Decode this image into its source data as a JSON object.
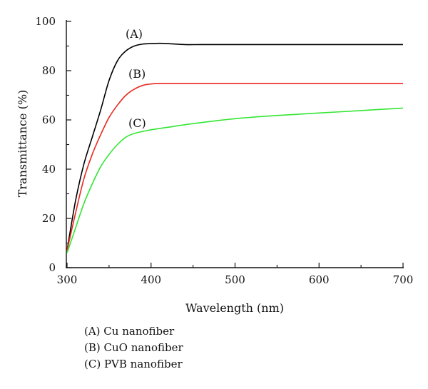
{
  "chart_data": {
    "type": "line",
    "title": "",
    "xlabel": "Wavelength (nm)",
    "ylabel": "Transmittance (%)",
    "xlim": [
      300,
      700
    ],
    "ylim": [
      0,
      100
    ],
    "xticks": [
      300,
      400,
      500,
      600,
      700
    ],
    "yticks": [
      0,
      20,
      40,
      60,
      80,
      100
    ],
    "grid": false,
    "legend_placement": "below chart",
    "series": [
      {
        "name": "(A) Cu nanofiber",
        "label": "(A)",
        "color": "#000000",
        "x": [
          300,
          310,
          320,
          330,
          340,
          350,
          360,
          370,
          380,
          390,
          400,
          410,
          420,
          440,
          460,
          500,
          550,
          600,
          650,
          700
        ],
        "y": [
          7,
          27,
          42,
          53,
          64,
          76,
          84,
          88,
          90,
          90.8,
          91,
          91.1,
          91,
          90.6,
          90.6,
          90.6,
          90.6,
          90.6,
          90.6,
          90.6
        ]
      },
      {
        "name": "(B) CuO nanofiber",
        "label": "(B)",
        "color": "#e8281e",
        "x": [
          300,
          310,
          320,
          330,
          340,
          350,
          360,
          370,
          380,
          390,
          400,
          410,
          420,
          450,
          500,
          550,
          600,
          650,
          700
        ],
        "y": [
          7,
          22,
          36,
          46,
          54,
          61,
          66,
          70,
          72.5,
          74,
          74.6,
          74.8,
          74.8,
          74.8,
          74.8,
          74.8,
          74.8,
          74.8,
          74.8
        ]
      },
      {
        "name": "(C) PVB nanofiber",
        "label": "(C)",
        "color": "#33e633",
        "x": [
          300,
          310,
          320,
          330,
          340,
          350,
          360,
          370,
          380,
          390,
          400,
          420,
          450,
          500,
          550,
          600,
          650,
          700
        ],
        "y": [
          6,
          16,
          26,
          34,
          41,
          46,
          50,
          53,
          54.5,
          55.3,
          56,
          57,
          58.5,
          60.5,
          61.8,
          62.8,
          63.8,
          64.8
        ]
      }
    ]
  },
  "legend": {
    "items": [
      "(A) Cu nanofiber",
      "(B) CuO nanofiber",
      "(C) PVB nanofiber"
    ]
  }
}
